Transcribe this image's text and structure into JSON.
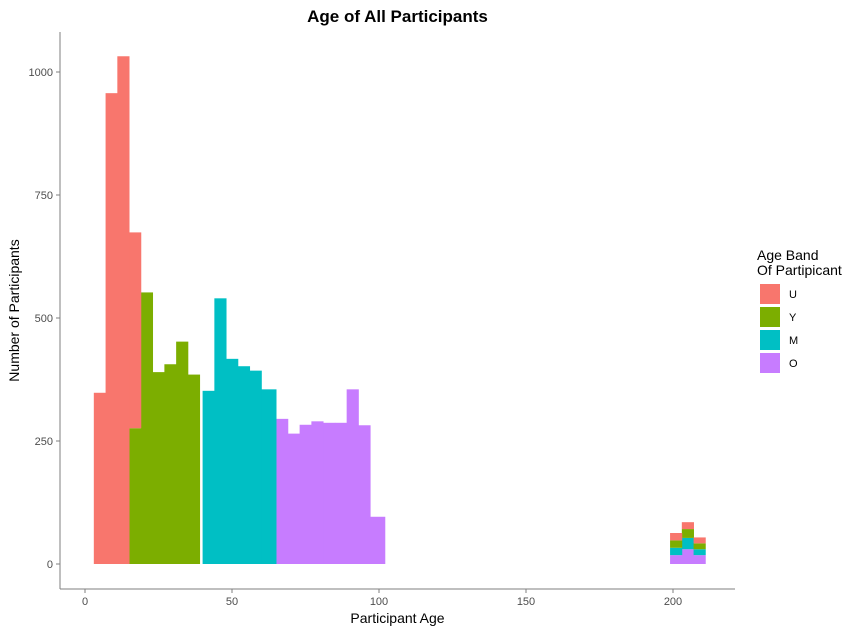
{
  "chart_data": {
    "type": "bar",
    "title": "Age of All Participants",
    "xlabel": "Participant Age",
    "ylabel": "Number of Participants",
    "xlim": [
      -5,
      223
    ],
    "ylim": [
      0,
      1085
    ],
    "x_ticks": [
      0,
      50,
      100,
      150,
      200
    ],
    "y_ticks": [
      0,
      250,
      500,
      750,
      1000
    ],
    "grid": false,
    "stacked": true,
    "bin_width": 4,
    "legend": {
      "title_lines": [
        "Age Band",
        "Of Partipicant"
      ],
      "placement": "right"
    },
    "colors": {
      "U": "#F8766D",
      "Y": "#7CAE00",
      "M": "#00BFC4",
      "O": "#C77CFF"
    },
    "series": [
      {
        "name": "U",
        "bins": [
          {
            "x0": 3,
            "x1": 7,
            "y": 348
          },
          {
            "x0": 7,
            "x1": 11,
            "y": 957
          },
          {
            "x0": 11,
            "x1": 15,
            "y": 1032
          },
          {
            "x0": 15,
            "x1": 19,
            "y": 398
          },
          {
            "x0": 199,
            "x1": 203,
            "y": 15
          },
          {
            "x0": 203,
            "x1": 207,
            "y": 14
          },
          {
            "x0": 207,
            "x1": 211,
            "y": 12
          }
        ]
      },
      {
        "name": "Y",
        "bins": [
          {
            "x0": 15,
            "x1": 19,
            "y": 276
          },
          {
            "x0": 19,
            "x1": 23,
            "y": 552
          },
          {
            "x0": 23,
            "x1": 27,
            "y": 390
          },
          {
            "x0": 27,
            "x1": 31,
            "y": 406
          },
          {
            "x0": 31,
            "x1": 35,
            "y": 452
          },
          {
            "x0": 35,
            "x1": 39,
            "y": 385
          },
          {
            "x0": 199,
            "x1": 203,
            "y": 15
          },
          {
            "x0": 203,
            "x1": 207,
            "y": 18
          },
          {
            "x0": 207,
            "x1": 211,
            "y": 12
          }
        ]
      },
      {
        "name": "M",
        "bins": [
          {
            "x0": 40,
            "x1": 44,
            "y": 352
          },
          {
            "x0": 44,
            "x1": 48,
            "y": 540
          },
          {
            "x0": 48,
            "x1": 52,
            "y": 417
          },
          {
            "x0": 52,
            "x1": 56,
            "y": 402
          },
          {
            "x0": 56,
            "x1": 60,
            "y": 393
          },
          {
            "x0": 60,
            "x1": 65,
            "y": 355
          },
          {
            "x0": 199,
            "x1": 203,
            "y": 15
          },
          {
            "x0": 203,
            "x1": 207,
            "y": 23
          },
          {
            "x0": 207,
            "x1": 211,
            "y": 12
          }
        ]
      },
      {
        "name": "O",
        "bins": [
          {
            "x0": 65,
            "x1": 69,
            "y": 295
          },
          {
            "x0": 69,
            "x1": 73,
            "y": 265
          },
          {
            "x0": 73,
            "x1": 77,
            "y": 283
          },
          {
            "x0": 77,
            "x1": 81,
            "y": 290
          },
          {
            "x0": 81,
            "x1": 85,
            "y": 287
          },
          {
            "x0": 85,
            "x1": 89,
            "y": 287
          },
          {
            "x0": 89,
            "x1": 93,
            "y": 355
          },
          {
            "x0": 93,
            "x1": 97,
            "y": 282
          },
          {
            "x0": 97,
            "x1": 102,
            "y": 96
          },
          {
            "x0": 199,
            "x1": 203,
            "y": 18
          },
          {
            "x0": 203,
            "x1": 207,
            "y": 30
          },
          {
            "x0": 207,
            "x1": 211,
            "y": 18
          }
        ]
      }
    ]
  }
}
